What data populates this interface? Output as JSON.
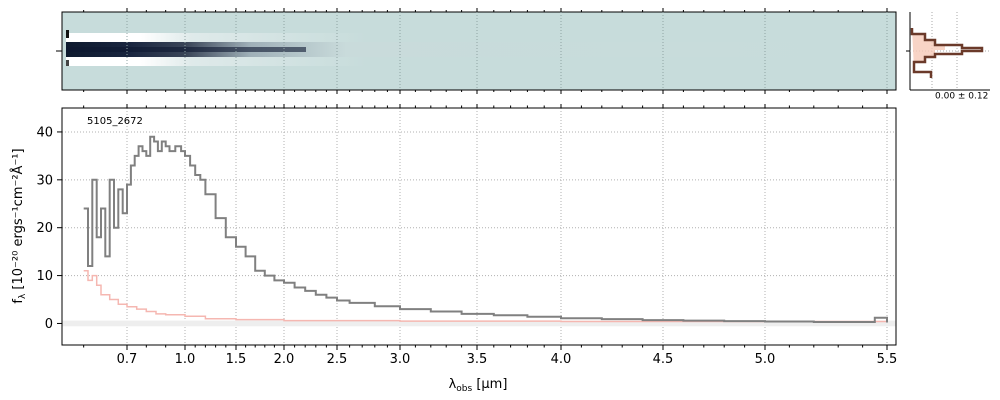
{
  "chart_data": {
    "type": "line",
    "object_label": "5105_2672",
    "xlabel_main": "λ",
    "xlabel_sub": "obs",
    "xlabel_unit": " [μm]",
    "ylabel_main": "f",
    "ylabel_sub": "λ",
    "ylabel_unit": " [10⁻²⁰ ergs⁻¹cm⁻²Å⁻¹]",
    "xticks": [
      "0.7",
      "1.0",
      "1.5",
      "2.0",
      "2.5",
      "3.0",
      "3.5",
      "4.0",
      "4.5",
      "5.0",
      "5.5"
    ],
    "yticks": [
      "0",
      "10",
      "20",
      "30",
      "40"
    ],
    "ylim": [
      -4.5,
      45
    ],
    "xscale": "compressed-wavelength",
    "grid": true,
    "side_panel_label": "0.00 ± 0.12",
    "series": [
      {
        "color": "#808080",
        "role": "flux",
        "points": [
          [
            0.6,
            24
          ],
          [
            0.61,
            12
          ],
          [
            0.62,
            30
          ],
          [
            0.63,
            18
          ],
          [
            0.64,
            24
          ],
          [
            0.65,
            14
          ],
          [
            0.66,
            30
          ],
          [
            0.67,
            20
          ],
          [
            0.68,
            28
          ],
          [
            0.69,
            23
          ],
          [
            0.7,
            29
          ],
          [
            0.72,
            33
          ],
          [
            0.74,
            35
          ],
          [
            0.76,
            37
          ],
          [
            0.78,
            36
          ],
          [
            0.8,
            35
          ],
          [
            0.82,
            39
          ],
          [
            0.84,
            38
          ],
          [
            0.86,
            36
          ],
          [
            0.88,
            38
          ],
          [
            0.9,
            37
          ],
          [
            0.92,
            36
          ],
          [
            0.95,
            37
          ],
          [
            0.98,
            36
          ],
          [
            1.0,
            35
          ],
          [
            1.05,
            33
          ],
          [
            1.1,
            31
          ],
          [
            1.15,
            30
          ],
          [
            1.2,
            27
          ],
          [
            1.3,
            22
          ],
          [
            1.4,
            18
          ],
          [
            1.5,
            16
          ],
          [
            1.6,
            14
          ],
          [
            1.7,
            11
          ],
          [
            1.8,
            10
          ],
          [
            1.9,
            9
          ],
          [
            2.0,
            8.5
          ],
          [
            2.1,
            7.5
          ],
          [
            2.2,
            6.8
          ],
          [
            2.3,
            6.0
          ],
          [
            2.4,
            5.4
          ],
          [
            2.5,
            4.8
          ],
          [
            2.6,
            4.3
          ],
          [
            2.8,
            3.6
          ],
          [
            3.0,
            3.0
          ],
          [
            3.2,
            2.5
          ],
          [
            3.4,
            2.0
          ],
          [
            3.6,
            1.7
          ],
          [
            3.8,
            1.4
          ],
          [
            4.0,
            1.1
          ],
          [
            4.2,
            0.9
          ],
          [
            4.4,
            0.7
          ],
          [
            4.6,
            0.6
          ],
          [
            4.8,
            0.5
          ],
          [
            5.0,
            0.4
          ],
          [
            5.2,
            0.3
          ],
          [
            5.4,
            0.3
          ],
          [
            5.45,
            1.2
          ],
          [
            5.5,
            0.2
          ]
        ]
      },
      {
        "color": "#f5b7b1",
        "role": "uncertainty",
        "points": [
          [
            0.6,
            11
          ],
          [
            0.61,
            9
          ],
          [
            0.62,
            10
          ],
          [
            0.63,
            8
          ],
          [
            0.64,
            6
          ],
          [
            0.66,
            5
          ],
          [
            0.68,
            4
          ],
          [
            0.7,
            3.5
          ],
          [
            0.75,
            3
          ],
          [
            0.8,
            2.5
          ],
          [
            0.85,
            2
          ],
          [
            0.9,
            1.8
          ],
          [
            1.0,
            1.5
          ],
          [
            1.2,
            1.0
          ],
          [
            1.5,
            0.8
          ],
          [
            2.0,
            0.6
          ],
          [
            3.0,
            0.5
          ],
          [
            4.0,
            0.4
          ],
          [
            5.0,
            0.4
          ],
          [
            5.5,
            0.4
          ]
        ]
      }
    ]
  }
}
